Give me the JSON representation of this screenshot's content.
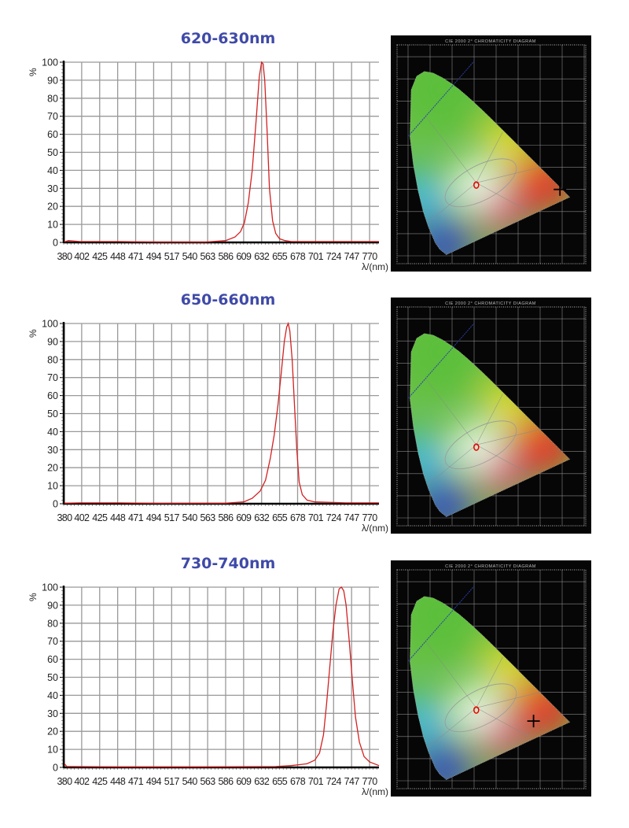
{
  "chart_data": [
    {
      "type": "line",
      "title": "620-630nm",
      "xlabel": "λ/(nm)",
      "ylabel": "%",
      "xlim": [
        379,
        782
      ],
      "ylim": [
        0,
        100
      ],
      "grid": true,
      "xticks": [
        380,
        402,
        425,
        448,
        471,
        494,
        517,
        540,
        563,
        586,
        609,
        632,
        655,
        678,
        701,
        724,
        747,
        770
      ],
      "yticks": [
        0,
        10,
        20,
        30,
        40,
        50,
        60,
        70,
        80,
        90,
        100
      ],
      "line_color": "#d42020",
      "series": [
        {
          "x": [
            380,
            385,
            400,
            450,
            500,
            560,
            586,
            598,
            605,
            610,
            615,
            620,
            625,
            629,
            632,
            634,
            636,
            639,
            642,
            646,
            650,
            655,
            662,
            670,
            700,
            740,
            782
          ],
          "y": [
            0.3,
            1,
            0.5,
            0.5,
            0.2,
            0.2,
            1,
            3,
            6,
            11,
            22,
            40,
            68,
            92,
            100,
            99,
            90,
            62,
            30,
            12,
            5,
            2,
            1,
            0.5,
            0.5,
            0.5,
            0.5
          ]
        }
      ]
    },
    {
      "type": "line",
      "title": "650-660nm",
      "xlabel": "λ/(nm)",
      "ylabel": "%",
      "xlim": [
        379,
        782
      ],
      "ylim": [
        0,
        100
      ],
      "grid": true,
      "xticks": [
        380,
        402,
        425,
        448,
        471,
        494,
        517,
        540,
        563,
        586,
        609,
        632,
        655,
        678,
        701,
        724,
        747,
        770
      ],
      "yticks": [
        0,
        10,
        20,
        30,
        40,
        50,
        60,
        70,
        80,
        90,
        100
      ],
      "line_color": "#d42020",
      "series": [
        {
          "x": [
            380,
            400,
            450,
            500,
            586,
            609,
            620,
            630,
            637,
            643,
            648,
            653,
            657,
            661,
            664,
            666,
            668,
            671,
            674,
            677,
            680,
            684,
            690,
            700,
            740,
            782
          ],
          "y": [
            0.3,
            0.5,
            0.5,
            0.2,
            0.3,
            1,
            3,
            7,
            13,
            25,
            38,
            55,
            72,
            90,
            98,
            100,
            96,
            80,
            55,
            30,
            12,
            5,
            2,
            1,
            0.5,
            0.5
          ]
        }
      ]
    },
    {
      "type": "line",
      "title": "730-740nm",
      "xlabel": "λ/(nm)",
      "ylabel": "%",
      "xlim": [
        379,
        782
      ],
      "ylim": [
        0,
        100
      ],
      "grid": true,
      "xticks": [
        380,
        402,
        425,
        448,
        471,
        494,
        517,
        540,
        563,
        586,
        609,
        632,
        655,
        678,
        701,
        724,
        747,
        770
      ],
      "yticks": [
        0,
        10,
        20,
        30,
        40,
        50,
        60,
        70,
        80,
        90,
        100
      ],
      "line_color": "#d42020",
      "series": [
        {
          "x": [
            380,
            383,
            390,
            450,
            550,
            650,
            670,
            690,
            700,
            706,
            711,
            715,
            719,
            723,
            727,
            731,
            734,
            737,
            740,
            744,
            748,
            752,
            757,
            763,
            770,
            782
          ],
          "y": [
            2,
            0.5,
            0.5,
            0.3,
            0.3,
            0.5,
            1,
            2,
            4,
            8,
            18,
            35,
            55,
            75,
            90,
            99,
            100,
            98,
            90,
            70,
            48,
            28,
            14,
            6,
            3,
            1
          ]
        }
      ]
    }
  ],
  "chromaticity_panels": [
    {
      "title": "CIE 2000 2° CHROMATICITY DIAGRAM",
      "marker": true
    },
    {
      "title": "CIE 2000 2° CHROMATICITY DIAGRAM",
      "marker": false
    },
    {
      "title": "CIE 2000 2° CHROMATICITY DIAGRAM",
      "marker": true
    }
  ],
  "colors": {
    "title": "#3f4aa8",
    "curve": "#d42020",
    "grid": "#999999",
    "panel_bg": "#060606"
  }
}
